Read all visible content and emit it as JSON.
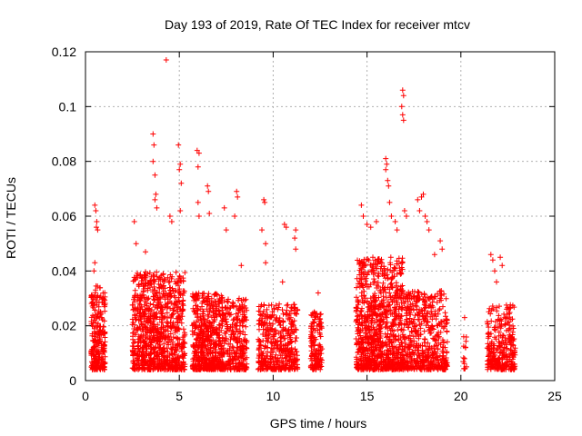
{
  "chart_data": {
    "type": "scatter",
    "title": "Day 193 of 2019, Rate Of TEC Index for receiver mtcv",
    "xlabel": "GPS time / hours",
    "ylabel": "ROTI / TECUs",
    "xlim": [
      0,
      25
    ],
    "ylim": [
      0,
      0.12
    ],
    "x_ticks": [
      0,
      5,
      10,
      15,
      20,
      25
    ],
    "x_tick_labels": [
      "0",
      "5",
      "10",
      "15",
      "20",
      "25"
    ],
    "y_ticks": [
      0,
      0.02,
      0.04,
      0.06,
      0.08,
      0.1,
      0.12
    ],
    "y_tick_labels": [
      "0",
      "0.02",
      "0.04",
      "0.06",
      "0.08",
      "0.1",
      "0.12"
    ],
    "grid": true,
    "marker": "+",
    "marker_color": "#ff0000",
    "clusters": [
      {
        "x_range": [
          0.3,
          1.05
        ],
        "base_max": 0.035,
        "count": 260
      },
      {
        "x_range": [
          2.5,
          5.3
        ],
        "base_max": 0.04,
        "count": 900
      },
      {
        "x_range": [
          5.7,
          7.3
        ],
        "base_max": 0.032,
        "count": 520
      },
      {
        "x_range": [
          7.3,
          8.6
        ],
        "base_max": 0.03,
        "count": 300
      },
      {
        "x_range": [
          9.2,
          11.3
        ],
        "base_max": 0.028,
        "count": 420
      },
      {
        "x_range": [
          12.0,
          12.6
        ],
        "base_max": 0.025,
        "count": 140
      },
      {
        "x_range": [
          14.4,
          16.9
        ],
        "base_max": 0.045,
        "count": 900
      },
      {
        "x_range": [
          16.9,
          19.3
        ],
        "base_max": 0.033,
        "count": 520
      },
      {
        "x_range": [
          20.1,
          20.3
        ],
        "base_max": 0.02,
        "count": 10
      },
      {
        "x_range": [
          21.4,
          22.9
        ],
        "base_max": 0.028,
        "count": 300
      }
    ],
    "outliers": [
      {
        "x": 0.5,
        "y": 0.064
      },
      {
        "x": 0.55,
        "y": 0.062
      },
      {
        "x": 0.6,
        "y": 0.058
      },
      {
        "x": 0.58,
        "y": 0.056
      },
      {
        "x": 0.65,
        "y": 0.055
      },
      {
        "x": 0.5,
        "y": 0.043
      },
      {
        "x": 0.45,
        "y": 0.04
      },
      {
        "x": 2.6,
        "y": 0.058
      },
      {
        "x": 2.7,
        "y": 0.05
      },
      {
        "x": 3.2,
        "y": 0.047
      },
      {
        "x": 3.6,
        "y": 0.09
      },
      {
        "x": 3.65,
        "y": 0.086
      },
      {
        "x": 3.6,
        "y": 0.08
      },
      {
        "x": 3.7,
        "y": 0.075
      },
      {
        "x": 3.75,
        "y": 0.068
      },
      {
        "x": 3.7,
        "y": 0.066
      },
      {
        "x": 3.8,
        "y": 0.063
      },
      {
        "x": 4.3,
        "y": 0.117
      },
      {
        "x": 4.5,
        "y": 0.06
      },
      {
        "x": 4.6,
        "y": 0.058
      },
      {
        "x": 4.95,
        "y": 0.086
      },
      {
        "x": 5.05,
        "y": 0.079
      },
      {
        "x": 5.0,
        "y": 0.077
      },
      {
        "x": 5.1,
        "y": 0.072
      },
      {
        "x": 5.05,
        "y": 0.062
      },
      {
        "x": 5.95,
        "y": 0.084
      },
      {
        "x": 6.05,
        "y": 0.083
      },
      {
        "x": 6.0,
        "y": 0.078
      },
      {
        "x": 6.0,
        "y": 0.065
      },
      {
        "x": 6.05,
        "y": 0.06
      },
      {
        "x": 6.5,
        "y": 0.071
      },
      {
        "x": 6.55,
        "y": 0.069
      },
      {
        "x": 6.6,
        "y": 0.061
      },
      {
        "x": 7.4,
        "y": 0.063
      },
      {
        "x": 7.5,
        "y": 0.055
      },
      {
        "x": 8.05,
        "y": 0.069
      },
      {
        "x": 8.1,
        "y": 0.067
      },
      {
        "x": 7.95,
        "y": 0.06
      },
      {
        "x": 8.3,
        "y": 0.042
      },
      {
        "x": 9.5,
        "y": 0.066
      },
      {
        "x": 9.55,
        "y": 0.065
      },
      {
        "x": 9.4,
        "y": 0.055
      },
      {
        "x": 9.6,
        "y": 0.05
      },
      {
        "x": 9.6,
        "y": 0.043
      },
      {
        "x": 10.6,
        "y": 0.057
      },
      {
        "x": 10.7,
        "y": 0.056
      },
      {
        "x": 11.2,
        "y": 0.055
      },
      {
        "x": 11.15,
        "y": 0.052
      },
      {
        "x": 11.2,
        "y": 0.048
      },
      {
        "x": 10.5,
        "y": 0.036
      },
      {
        "x": 12.4,
        "y": 0.032
      },
      {
        "x": 14.7,
        "y": 0.064
      },
      {
        "x": 14.8,
        "y": 0.06
      },
      {
        "x": 15.0,
        "y": 0.057
      },
      {
        "x": 15.2,
        "y": 0.056
      },
      {
        "x": 15.5,
        "y": 0.058
      },
      {
        "x": 16.0,
        "y": 0.081
      },
      {
        "x": 16.05,
        "y": 0.079
      },
      {
        "x": 16.0,
        "y": 0.077
      },
      {
        "x": 16.1,
        "y": 0.073
      },
      {
        "x": 16.15,
        "y": 0.071
      },
      {
        "x": 16.2,
        "y": 0.065
      },
      {
        "x": 16.3,
        "y": 0.06
      },
      {
        "x": 16.5,
        "y": 0.058
      },
      {
        "x": 16.6,
        "y": 0.055
      },
      {
        "x": 16.9,
        "y": 0.106
      },
      {
        "x": 16.95,
        "y": 0.104
      },
      {
        "x": 16.85,
        "y": 0.1
      },
      {
        "x": 16.9,
        "y": 0.097
      },
      {
        "x": 16.95,
        "y": 0.095
      },
      {
        "x": 17.0,
        "y": 0.062
      },
      {
        "x": 17.1,
        "y": 0.06
      },
      {
        "x": 17.7,
        "y": 0.066
      },
      {
        "x": 17.9,
        "y": 0.067
      },
      {
        "x": 18.0,
        "y": 0.068
      },
      {
        "x": 17.8,
        "y": 0.062
      },
      {
        "x": 18.1,
        "y": 0.06
      },
      {
        "x": 18.2,
        "y": 0.058
      },
      {
        "x": 18.3,
        "y": 0.055
      },
      {
        "x": 18.6,
        "y": 0.046
      },
      {
        "x": 18.9,
        "y": 0.051
      },
      {
        "x": 19.0,
        "y": 0.048
      },
      {
        "x": 20.2,
        "y": 0.023
      },
      {
        "x": 20.15,
        "y": 0.016
      },
      {
        "x": 20.25,
        "y": 0.012
      },
      {
        "x": 20.2,
        "y": 0.008
      },
      {
        "x": 20.3,
        "y": 0.005
      },
      {
        "x": 21.6,
        "y": 0.046
      },
      {
        "x": 21.7,
        "y": 0.044
      },
      {
        "x": 21.8,
        "y": 0.04
      },
      {
        "x": 22.1,
        "y": 0.045
      },
      {
        "x": 22.2,
        "y": 0.042
      },
      {
        "x": 21.9,
        "y": 0.036
      }
    ]
  }
}
